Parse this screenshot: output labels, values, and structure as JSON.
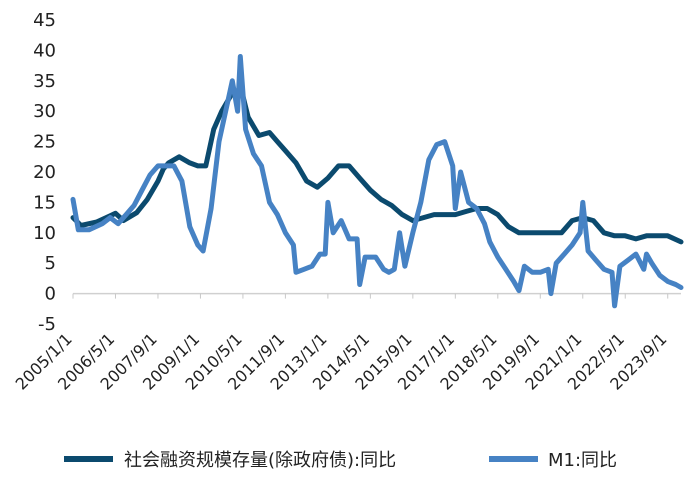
{
  "chart_data": {
    "type": "line",
    "title": "",
    "xlabel": "",
    "ylabel": "",
    "ylim": [
      -5,
      45
    ],
    "yticks": [
      -5,
      0,
      5,
      10,
      15,
      20,
      25,
      30,
      35,
      40,
      45
    ],
    "x_range": [
      "2005/1/1",
      "2024/2/1"
    ],
    "xtick_labels": [
      "2005/1/1",
      "2006/5/1",
      "2007/9/1",
      "2009/1/1",
      "2010/5/1",
      "2011/9/1",
      "2013/1/1",
      "2014/5/1",
      "2015/9/1",
      "2017/1/1",
      "2018/5/1",
      "2019/9/1",
      "2021/1/1",
      "2022/5/1",
      "2023/9/1"
    ],
    "grid": false,
    "legend_position": "bottom",
    "series": [
      {
        "name": "社会融资规模存量(除政府债):同比",
        "color": "#0b4a6e",
        "points": [
          [
            "2005/1/1",
            12.5
          ],
          [
            "2005/4/1",
            11.2
          ],
          [
            "2005/10/1",
            11.8
          ],
          [
            "2006/3/1",
            12.8
          ],
          [
            "2006/5/1",
            13.2
          ],
          [
            "2006/8/1",
            12.0
          ],
          [
            "2007/1/1",
            13.3
          ],
          [
            "2007/5/1",
            15.5
          ],
          [
            "2007/9/1",
            18.5
          ],
          [
            "2007/11/1",
            20.5
          ],
          [
            "2008/1/1",
            21.5
          ],
          [
            "2008/5/1",
            22.5
          ],
          [
            "2008/9/1",
            21.5
          ],
          [
            "2008/12/1",
            21.0
          ],
          [
            "2009/3/1",
            21.0
          ],
          [
            "2009/6/1",
            27.0
          ],
          [
            "2009/9/1",
            30.0
          ],
          [
            "2010/1/1",
            33.0
          ],
          [
            "2010/5/1",
            32.5
          ],
          [
            "2010/7/1",
            29.0
          ],
          [
            "2010/11/1",
            26.0
          ],
          [
            "2011/3/1",
            26.5
          ],
          [
            "2011/6/1",
            25.0
          ],
          [
            "2011/9/1",
            23.5
          ],
          [
            "2012/1/1",
            21.5
          ],
          [
            "2012/5/1",
            18.5
          ],
          [
            "2012/9/1",
            17.5
          ],
          [
            "2013/1/1",
            19.0
          ],
          [
            "2013/5/1",
            21.0
          ],
          [
            "2013/9/1",
            21.0
          ],
          [
            "2014/1/1",
            19.0
          ],
          [
            "2014/5/1",
            17.0
          ],
          [
            "2014/9/1",
            15.5
          ],
          [
            "2015/1/1",
            14.5
          ],
          [
            "2015/5/1",
            13.0
          ],
          [
            "2015/9/1",
            12.0
          ],
          [
            "2016/1/1",
            12.5
          ],
          [
            "2016/5/1",
            13.0
          ],
          [
            "2016/9/1",
            13.0
          ],
          [
            "2017/1/1",
            13.0
          ],
          [
            "2017/5/1",
            13.5
          ],
          [
            "2017/9/1",
            14.0
          ],
          [
            "2018/1/1",
            14.0
          ],
          [
            "2018/5/1",
            13.0
          ],
          [
            "2018/9/1",
            11.0
          ],
          [
            "2019/1/1",
            10.0
          ],
          [
            "2019/5/1",
            10.0
          ],
          [
            "2019/9/1",
            10.0
          ],
          [
            "2020/1/1",
            10.0
          ],
          [
            "2020/5/1",
            10.0
          ],
          [
            "2020/9/1",
            12.0
          ],
          [
            "2021/1/1",
            12.5
          ],
          [
            "2021/5/1",
            12.0
          ],
          [
            "2021/9/1",
            10.0
          ],
          [
            "2022/1/1",
            9.5
          ],
          [
            "2022/5/1",
            9.5
          ],
          [
            "2022/9/1",
            9.0
          ],
          [
            "2023/1/1",
            9.5
          ],
          [
            "2023/5/1",
            9.5
          ],
          [
            "2023/9/1",
            9.5
          ],
          [
            "2024/2/1",
            8.5
          ]
        ]
      },
      {
        "name": "M1:同比",
        "color": "#4682c4",
        "points": [
          [
            "2005/1/1",
            15.5
          ],
          [
            "2005/3/1",
            10.5
          ],
          [
            "2005/7/1",
            10.5
          ],
          [
            "2005/12/1",
            11.5
          ],
          [
            "2006/3/1",
            12.5
          ],
          [
            "2006/6/1",
            11.5
          ],
          [
            "2006/9/1",
            13.0
          ],
          [
            "2006/12/1",
            14.5
          ],
          [
            "2007/3/1",
            17.0
          ],
          [
            "2007/6/1",
            19.5
          ],
          [
            "2007/9/1",
            21.0
          ],
          [
            "2007/12/1",
            21.0
          ],
          [
            "2008/3/1",
            21.0
          ],
          [
            "2008/6/1",
            18.5
          ],
          [
            "2008/9/1",
            11.0
          ],
          [
            "2008/12/1",
            8.0
          ],
          [
            "2009/2/1",
            7.0
          ],
          [
            "2009/5/1",
            14.0
          ],
          [
            "2009/8/1",
            25.0
          ],
          [
            "2009/11/1",
            31.0
          ],
          [
            "2010/1/1",
            35.0
          ],
          [
            "2010/3/1",
            30.0
          ],
          [
            "2010/4/1",
            39.0
          ],
          [
            "2010/6/1",
            27.0
          ],
          [
            "2010/9/1",
            23.0
          ],
          [
            "2010/12/1",
            21.0
          ],
          [
            "2011/3/1",
            15.0
          ],
          [
            "2011/6/1",
            13.0
          ],
          [
            "2011/9/1",
            10.0
          ],
          [
            "2011/12/1",
            8.0
          ],
          [
            "2012/1/1",
            3.5
          ],
          [
            "2012/4/1",
            4.0
          ],
          [
            "2012/7/1",
            4.5
          ],
          [
            "2012/10/1",
            6.5
          ],
          [
            "2012/12/1",
            6.5
          ],
          [
            "2013/1/1",
            15.0
          ],
          [
            "2013/3/1",
            10.0
          ],
          [
            "2013/6/1",
            12.0
          ],
          [
            "2013/9/1",
            9.0
          ],
          [
            "2013/12/1",
            9.0
          ],
          [
            "2014/1/1",
            1.5
          ],
          [
            "2014/3/1",
            6.0
          ],
          [
            "2014/7/1",
            6.0
          ],
          [
            "2014/10/1",
            4.0
          ],
          [
            "2014/12/1",
            3.5
          ],
          [
            "2015/2/1",
            4.0
          ],
          [
            "2015/4/1",
            10.0
          ],
          [
            "2015/6/1",
            4.5
          ],
          [
            "2015/9/1",
            10.0
          ],
          [
            "2015/12/1",
            15.0
          ],
          [
            "2016/3/1",
            22.0
          ],
          [
            "2016/6/1",
            24.5
          ],
          [
            "2016/9/1",
            25.0
          ],
          [
            "2016/12/1",
            21.0
          ],
          [
            "2017/1/1",
            14.0
          ],
          [
            "2017/3/1",
            20.0
          ],
          [
            "2017/6/1",
            15.0
          ],
          [
            "2017/9/1",
            14.0
          ],
          [
            "2017/12/1",
            11.5
          ],
          [
            "2018/2/1",
            8.5
          ],
          [
            "2018/5/1",
            6.0
          ],
          [
            "2018/8/1",
            4.0
          ],
          [
            "2018/11/1",
            2.0
          ],
          [
            "2019/1/1",
            0.5
          ],
          [
            "2019/3/1",
            4.5
          ],
          [
            "2019/6/1",
            3.5
          ],
          [
            "2019/9/1",
            3.5
          ],
          [
            "2019/12/1",
            4.0
          ],
          [
            "2020/1/1",
            0.0
          ],
          [
            "2020/3/1",
            5.0
          ],
          [
            "2020/6/1",
            6.5
          ],
          [
            "2020/9/1",
            8.0
          ],
          [
            "2020/12/1",
            10.0
          ],
          [
            "2021/1/1",
            15.0
          ],
          [
            "2021/3/1",
            7.0
          ],
          [
            "2021/6/1",
            5.5
          ],
          [
            "2021/9/1",
            4.0
          ],
          [
            "2021/12/1",
            3.5
          ],
          [
            "2022/1/1",
            -2.0
          ],
          [
            "2022/3/1",
            4.5
          ],
          [
            "2022/6/1",
            5.5
          ],
          [
            "2022/9/1",
            6.5
          ],
          [
            "2022/12/1",
            4.0
          ],
          [
            "2023/1/1",
            6.5
          ],
          [
            "2023/3/1",
            5.0
          ],
          [
            "2023/6/1",
            3.0
          ],
          [
            "2023/9/1",
            2.0
          ],
          [
            "2023/12/1",
            1.5
          ],
          [
            "2024/2/1",
            1.0
          ]
        ]
      }
    ]
  }
}
